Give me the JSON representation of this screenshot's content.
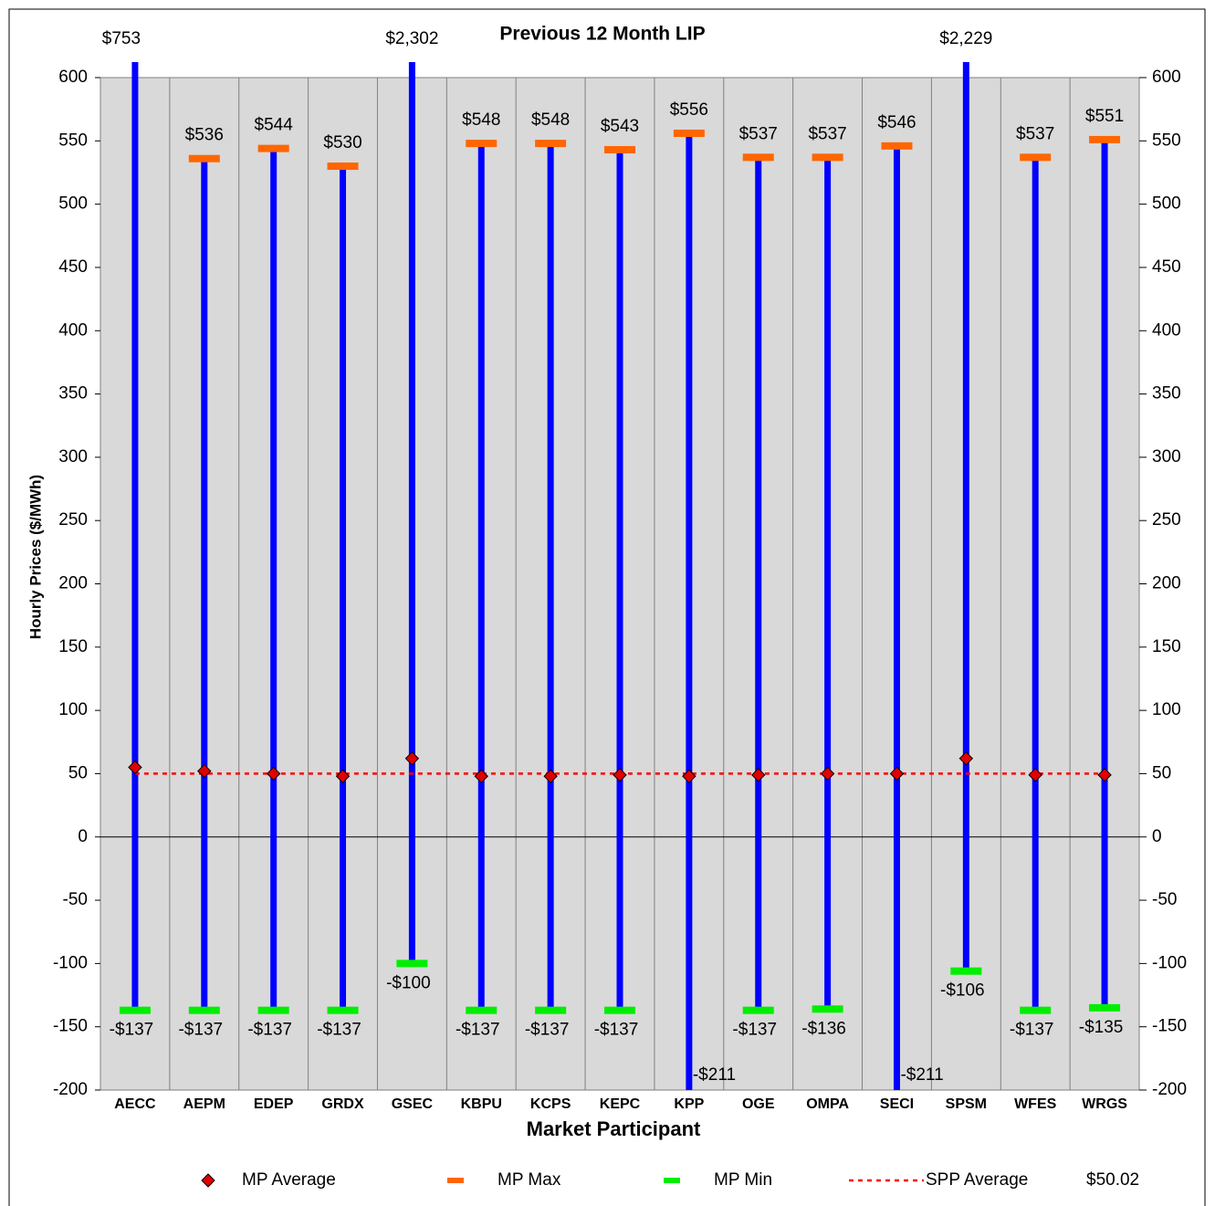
{
  "chart_data": {
    "type": "highlow",
    "title": "Previous 12 Month LIP",
    "x_label": "Market Participant",
    "y_label": "Hourly Prices ($/MWh)",
    "categories": [
      "AECC",
      "AEPM",
      "EDEP",
      "GRDX",
      "GSEC",
      "KBPU",
      "KCPS",
      "KEPC",
      "KPP",
      "OGE",
      "OMPA",
      "SECI",
      "SPSM",
      "WFES",
      "WRGS"
    ],
    "series": [
      {
        "name": "MP Average",
        "color": "#e00000",
        "values": [
          55,
          52,
          50,
          48,
          62,
          48,
          48,
          49,
          48,
          49,
          50,
          50,
          62,
          49,
          49
        ]
      },
      {
        "name": "MP Max",
        "color": "#ff6600",
        "values": [
          753,
          536,
          544,
          530,
          2302,
          548,
          548,
          543,
          556,
          537,
          537,
          546,
          2229,
          537,
          551
        ],
        "value_labels": [
          "$753",
          "$536",
          "$544",
          "$530",
          "$2,302",
          "$548",
          "$548",
          "$543",
          "$556",
          "$537",
          "$537",
          "$546",
          "$2,229",
          "$537",
          "$551"
        ]
      },
      {
        "name": "MP Min",
        "color": "#00ee00",
        "values": [
          -137,
          -137,
          -137,
          -137,
          -100,
          -137,
          -137,
          -137,
          -211,
          -137,
          -136,
          -211,
          -106,
          -137,
          -135
        ],
        "value_labels": [
          "-$137",
          "-$137",
          "-$137",
          "-$137",
          "-$100",
          "-$137",
          "-$137",
          "-$137",
          "-$211",
          "-$137",
          "-$136",
          "-$211",
          "-$106",
          "-$137",
          "-$135"
        ]
      }
    ],
    "range_color": "#0000ff",
    "spp_average": {
      "name": "SPP Average",
      "value": 50.02,
      "label": "$50.02",
      "color": "#ff0000"
    },
    "ylim": [
      -200,
      600
    ],
    "yticks": [
      -200,
      -150,
      -100,
      -50,
      0,
      50,
      100,
      150,
      200,
      250,
      300,
      350,
      400,
      450,
      500,
      550,
      600
    ],
    "y2lim": [
      -200,
      600
    ],
    "y2ticks": [
      -200,
      -150,
      -100,
      -50,
      0,
      50,
      100,
      150,
      200,
      250,
      300,
      350,
      400,
      450,
      500,
      550,
      600
    ]
  }
}
